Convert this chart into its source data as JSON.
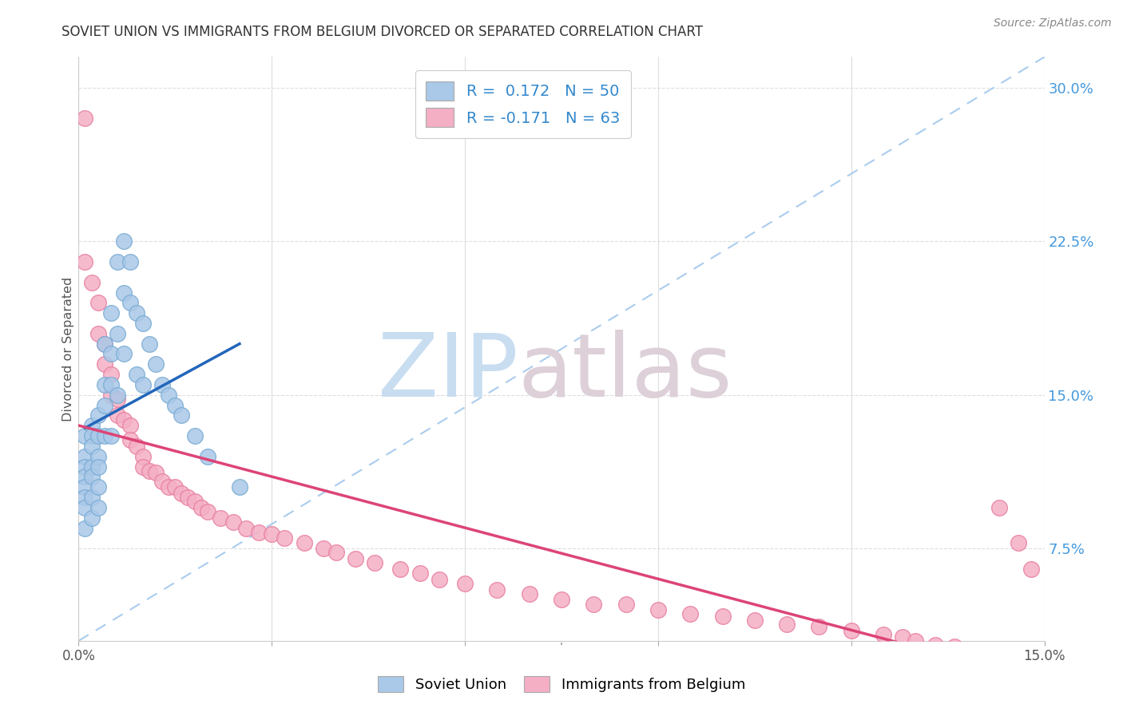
{
  "title": "SOVIET UNION VS IMMIGRANTS FROM BELGIUM DIVORCED OR SEPARATED CORRELATION CHART",
  "source": "Source: ZipAtlas.com",
  "ylabel": "Divorced or Separated",
  "yticks": [
    0.075,
    0.15,
    0.225,
    0.3
  ],
  "ytick_labels": [
    "7.5%",
    "15.0%",
    "22.5%",
    "30.0%"
  ],
  "xmin": 0.0,
  "xmax": 0.15,
  "ymin": 0.03,
  "ymax": 0.315,
  "label1": "Soviet Union",
  "label2": "Immigrants from Belgium",
  "color1": "#aac8e8",
  "color2": "#f4afc5",
  "edge1": "#7aacd4",
  "edge2": "#e880a0",
  "trend1_color": "#2266bb",
  "trend2_color": "#dd4477",
  "diag_color": "#aaccee",
  "watermark_zip": "#c8ddf0",
  "watermark_atlas": "#ddd0d8",
  "bg_color": "#ffffff",
  "grid_color": "#dddddd",
  "tick_color": "#4499dd",
  "legend_text_color": "#3388cc",
  "legend_r1": "R =  0.172",
  "legend_n1": "N = 50",
  "legend_r2": "R = -0.171",
  "legend_n2": "N = 63",
  "su_x": [
    0.001,
    0.001,
    0.001,
    0.001,
    0.001,
    0.001,
    0.001,
    0.001,
    0.002,
    0.002,
    0.002,
    0.002,
    0.002,
    0.002,
    0.002,
    0.003,
    0.003,
    0.003,
    0.003,
    0.003,
    0.003,
    0.004,
    0.004,
    0.004,
    0.004,
    0.005,
    0.005,
    0.005,
    0.005,
    0.006,
    0.006,
    0.006,
    0.007,
    0.007,
    0.007,
    0.008,
    0.008,
    0.009,
    0.009,
    0.01,
    0.01,
    0.011,
    0.012,
    0.013,
    0.014,
    0.015,
    0.016,
    0.018,
    0.02,
    0.025
  ],
  "su_y": [
    0.13,
    0.12,
    0.115,
    0.11,
    0.105,
    0.1,
    0.095,
    0.085,
    0.135,
    0.13,
    0.125,
    0.115,
    0.11,
    0.1,
    0.09,
    0.14,
    0.13,
    0.12,
    0.115,
    0.105,
    0.095,
    0.175,
    0.155,
    0.145,
    0.13,
    0.19,
    0.17,
    0.155,
    0.13,
    0.215,
    0.18,
    0.15,
    0.225,
    0.2,
    0.17,
    0.215,
    0.195,
    0.19,
    0.16,
    0.185,
    0.155,
    0.175,
    0.165,
    0.155,
    0.15,
    0.145,
    0.14,
    0.13,
    0.12,
    0.105
  ],
  "bel_x": [
    0.001,
    0.001,
    0.002,
    0.003,
    0.003,
    0.004,
    0.004,
    0.005,
    0.005,
    0.006,
    0.006,
    0.007,
    0.008,
    0.008,
    0.009,
    0.01,
    0.01,
    0.011,
    0.012,
    0.013,
    0.014,
    0.015,
    0.016,
    0.017,
    0.018,
    0.019,
    0.02,
    0.022,
    0.024,
    0.026,
    0.028,
    0.03,
    0.032,
    0.035,
    0.038,
    0.04,
    0.043,
    0.046,
    0.05,
    0.053,
    0.056,
    0.06,
    0.065,
    0.07,
    0.075,
    0.08,
    0.085,
    0.09,
    0.095,
    0.1,
    0.105,
    0.11,
    0.115,
    0.12,
    0.125,
    0.128,
    0.13,
    0.133,
    0.136,
    0.14,
    0.143,
    0.146,
    0.148
  ],
  "bel_y": [
    0.285,
    0.215,
    0.205,
    0.195,
    0.18,
    0.175,
    0.165,
    0.16,
    0.15,
    0.148,
    0.14,
    0.138,
    0.135,
    0.128,
    0.125,
    0.12,
    0.115,
    0.113,
    0.112,
    0.108,
    0.105,
    0.105,
    0.102,
    0.1,
    0.098,
    0.095,
    0.093,
    0.09,
    0.088,
    0.085,
    0.083,
    0.082,
    0.08,
    0.078,
    0.075,
    0.073,
    0.07,
    0.068,
    0.065,
    0.063,
    0.06,
    0.058,
    0.055,
    0.053,
    0.05,
    0.048,
    0.048,
    0.045,
    0.043,
    0.042,
    0.04,
    0.038,
    0.037,
    0.035,
    0.033,
    0.032,
    0.03,
    0.028,
    0.027,
    0.025,
    0.095,
    0.078,
    0.065
  ]
}
